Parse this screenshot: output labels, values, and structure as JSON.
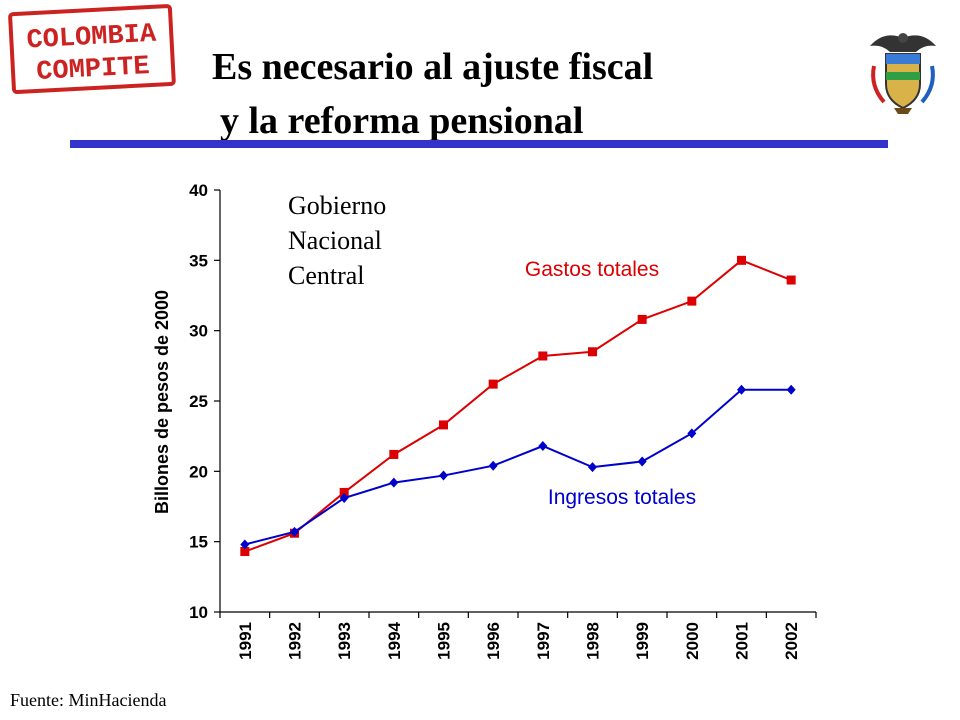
{
  "logo": {
    "text_line1": "COLOMBIA",
    "text_line2": "COMPITE"
  },
  "title": {
    "line1": "Es necesario al ajuste fiscal",
    "line2": "y la reforma pensional"
  },
  "annotation": {
    "lines": [
      "Gobierno",
      "Nacional",
      "Central"
    ]
  },
  "source": "Fuente: MinHacienda",
  "colors": {
    "rule": "#3333cc",
    "gastos": "#dd0000",
    "ingresos": "#0000cc",
    "stamp": "#cc2222"
  },
  "icons": {
    "crest": "colombia-coat-of-arms-icon"
  },
  "chart_data": {
    "type": "line",
    "categories": [
      "1991",
      "1992",
      "1993",
      "1994",
      "1995",
      "1996",
      "1997",
      "1998",
      "1999",
      "2000",
      "2001",
      "2002"
    ],
    "ylabel": "Billones de pesos de 2000",
    "xlabel": "",
    "ylim": [
      10,
      40
    ],
    "yticks": [
      10,
      15,
      20,
      25,
      30,
      35,
      40
    ],
    "series": [
      {
        "name": "Gastos totales",
        "marker": "square",
        "values": [
          14.3,
          15.6,
          18.5,
          21.2,
          23.3,
          26.2,
          28.2,
          28.5,
          30.8,
          32.1,
          35.0,
          33.6
        ]
      },
      {
        "name": "Ingresos totales",
        "marker": "diamond",
        "values": [
          14.8,
          15.7,
          18.1,
          19.2,
          19.7,
          20.4,
          21.8,
          20.3,
          20.7,
          22.7,
          25.8,
          25.8
        ]
      }
    ]
  }
}
